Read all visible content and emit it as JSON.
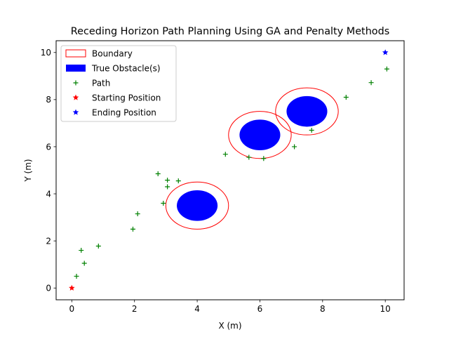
{
  "chart_data": {
    "type": "scatter",
    "title": "Receding Horizon Path Planning Using GA and Penalty Methods",
    "xlabel": "X (m)",
    "ylabel": "Y (m)",
    "xlim": [
      -0.5,
      10.6
    ],
    "ylim": [
      -0.5,
      10.5
    ],
    "xticks": [
      0,
      2,
      4,
      6,
      8,
      10
    ],
    "yticks": [
      0,
      2,
      4,
      6,
      8,
      10
    ],
    "grid": false,
    "legend_position": "upper-left",
    "legend": [
      {
        "label": "Boundary",
        "kind": "boundary"
      },
      {
        "label": "True Obstacle(s)",
        "kind": "obstacle"
      },
      {
        "label": "Path",
        "kind": "path"
      },
      {
        "label": "Starting Position",
        "kind": "start"
      },
      {
        "label": "Ending Position",
        "kind": "end"
      }
    ],
    "obstacles": [
      {
        "cx": 4.0,
        "cy": 3.5,
        "r": 0.65
      },
      {
        "cx": 6.0,
        "cy": 6.5,
        "r": 0.65
      },
      {
        "cx": 7.5,
        "cy": 7.5,
        "r": 0.65
      }
    ],
    "boundaries": [
      {
        "cx": 4.0,
        "cy": 3.5,
        "r": 1.0
      },
      {
        "cx": 6.0,
        "cy": 6.5,
        "r": 1.0
      },
      {
        "cx": 7.5,
        "cy": 7.5,
        "r": 1.0
      }
    ],
    "path": [
      {
        "x": 0.15,
        "y": 0.5
      },
      {
        "x": 0.4,
        "y": 1.05
      },
      {
        "x": 0.3,
        "y": 1.6
      },
      {
        "x": 0.85,
        "y": 1.78
      },
      {
        "x": 1.95,
        "y": 2.5
      },
      {
        "x": 2.1,
        "y": 3.15
      },
      {
        "x": 2.92,
        "y": 3.6
      },
      {
        "x": 3.05,
        "y": 4.3
      },
      {
        "x": 3.05,
        "y": 4.58
      },
      {
        "x": 2.75,
        "y": 4.85
      },
      {
        "x": 3.4,
        "y": 4.55
      },
      {
        "x": 4.9,
        "y": 5.68
      },
      {
        "x": 5.65,
        "y": 5.55
      },
      {
        "x": 6.12,
        "y": 5.5
      },
      {
        "x": 7.1,
        "y": 6.0
      },
      {
        "x": 7.65,
        "y": 6.7
      },
      {
        "x": 8.75,
        "y": 8.1
      },
      {
        "x": 9.55,
        "y": 8.72
      },
      {
        "x": 10.05,
        "y": 9.3
      }
    ],
    "start": {
      "x": 0.0,
      "y": 0.0
    },
    "end": {
      "x": 10.0,
      "y": 10.0
    },
    "colors": {
      "boundary": "#ff0000",
      "obstacle": "#0000ff",
      "path": "#008000",
      "start": "#ff0000",
      "end": "#0000ff"
    }
  }
}
